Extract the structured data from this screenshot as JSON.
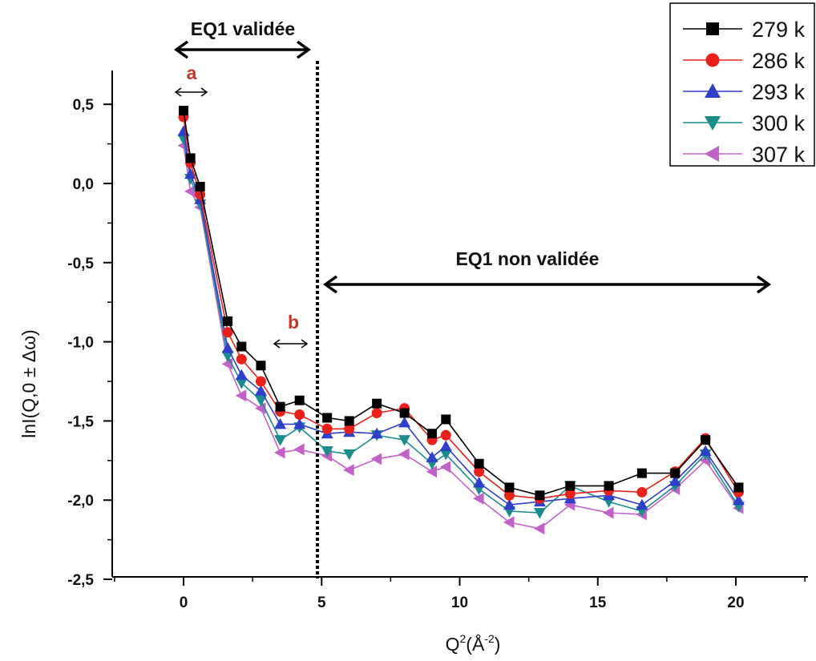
{
  "chart_data": {
    "type": "line",
    "xlabel": "Q",
    "xlabel_sup1": "2",
    "xlabel_mid": "(Å",
    "xlabel_sup2": "-2",
    "xlabel_end": ")",
    "ylabel": "lnI(Q,0 ± Δω)",
    "xlim": [
      -2.5,
      22.7
    ],
    "ylim": [
      -2.5,
      0.75
    ],
    "xticks": [
      0,
      5,
      10,
      15,
      20
    ],
    "xtick_labels": [
      "0",
      "5",
      "10",
      "15",
      "20"
    ],
    "yticks": [
      0.5,
      0.0,
      -0.5,
      -1.0,
      -1.5,
      -2.0,
      -2.5
    ],
    "ytick_labels": [
      "0,5",
      "0,0",
      "-0,5",
      "-1,0",
      "-1,5",
      "-2,0",
      "-2,5"
    ],
    "legend_position": "top-right",
    "x": [
      0.0,
      0.25,
      0.6,
      1.6,
      2.1,
      2.8,
      3.5,
      4.2,
      5.2,
      6.0,
      7.0,
      8.0,
      9.0,
      9.5,
      10.7,
      11.8,
      12.9,
      14.0,
      15.4,
      16.6,
      17.8,
      18.9,
      20.1
    ],
    "series": [
      {
        "name": "279 k",
        "color": "#000000",
        "marker": "square",
        "values": [
          0.46,
          0.16,
          -0.02,
          -0.87,
          -1.03,
          -1.15,
          -1.41,
          -1.37,
          -1.48,
          -1.5,
          -1.39,
          -1.45,
          -1.58,
          -1.49,
          -1.77,
          -1.92,
          -1.97,
          -1.91,
          -1.91,
          -1.83,
          -1.83,
          -1.62,
          -1.92
        ]
      },
      {
        "name": "286 k",
        "color": "#e8221b",
        "marker": "circle",
        "values": [
          0.42,
          0.13,
          -0.07,
          -0.94,
          -1.11,
          -1.25,
          -1.44,
          -1.46,
          -1.55,
          -1.55,
          -1.45,
          -1.42,
          -1.62,
          -1.59,
          -1.82,
          -1.97,
          -1.99,
          -1.96,
          -1.94,
          -1.95,
          -1.82,
          -1.61,
          -1.95
        ]
      },
      {
        "name": "293 k",
        "color": "#2e3fc9",
        "marker": "triangle-up",
        "values": [
          0.33,
          0.06,
          -0.1,
          -1.04,
          -1.21,
          -1.31,
          -1.52,
          -1.52,
          -1.58,
          -1.57,
          -1.58,
          -1.51,
          -1.73,
          -1.66,
          -1.89,
          -2.03,
          -2.01,
          -1.99,
          -1.97,
          -2.03,
          -1.88,
          -1.69,
          -2.0
        ]
      },
      {
        "name": "300 k",
        "color": "#1a8c8c",
        "marker": "triangle-down",
        "values": [
          0.28,
          0.03,
          -0.13,
          -1.09,
          -1.26,
          -1.37,
          -1.62,
          -1.54,
          -1.69,
          -1.71,
          -1.59,
          -1.62,
          -1.77,
          -1.71,
          -1.93,
          -2.07,
          -2.08,
          -1.91,
          -2.01,
          -2.07,
          -1.91,
          -1.71,
          -2.04
        ]
      },
      {
        "name": "307 k",
        "color": "#c262c9",
        "marker": "triangle-left",
        "values": [
          0.24,
          -0.05,
          -0.15,
          -1.14,
          -1.34,
          -1.42,
          -1.7,
          -1.68,
          -1.72,
          -1.81,
          -1.74,
          -1.71,
          -1.82,
          -1.79,
          -1.99,
          -2.14,
          -2.18,
          -2.03,
          -2.08,
          -2.09,
          -1.93,
          -1.75,
          -2.05
        ]
      }
    ],
    "annotations": {
      "region1_label": "EQ1  validée",
      "region2_label": "EQ1  non validée",
      "marker_a": "a",
      "marker_b": "b",
      "divider_x": 4.8
    }
  }
}
